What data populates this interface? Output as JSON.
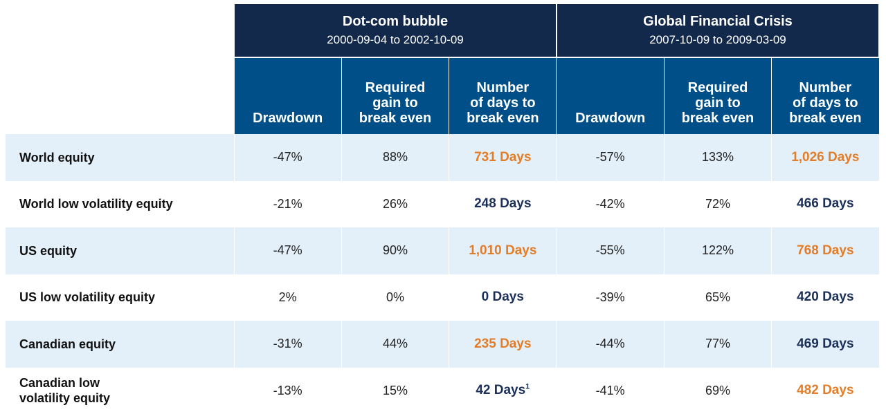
{
  "chart_data": {
    "type": "table",
    "title": "",
    "groups": [
      {
        "name": "Dot-com bubble",
        "dates": "2000-09-04 to 2002-10-09"
      },
      {
        "name": "Global Financial Crisis",
        "dates": "2007-10-09 to 2009-03-09"
      }
    ],
    "columns": [
      {
        "label": "Drawdown",
        "lines": [
          "Drawdown"
        ]
      },
      {
        "label": "Required gain to break even",
        "lines": [
          "Required",
          "gain to",
          "break even"
        ]
      },
      {
        "label": "Number of days to break even",
        "lines": [
          "Number",
          "of days to",
          "break even"
        ]
      }
    ],
    "rows": [
      {
        "label": "World equity",
        "label_lines": [
          "World equity"
        ],
        "cells": [
          {
            "drawdown": "-47%",
            "gain": "88%",
            "days": "731 Days",
            "days_color": "#e27d2a",
            "footnote": ""
          },
          {
            "drawdown": "-57%",
            "gain": "133%",
            "days": "1,026 Days",
            "days_color": "#e27d2a",
            "footnote": ""
          }
        ]
      },
      {
        "label": "World low volatility equity",
        "label_lines": [
          "World low volatility equity"
        ],
        "cells": [
          {
            "drawdown": "-21%",
            "gain": "26%",
            "days": "248 Days",
            "days_color": "#1b2f58",
            "footnote": ""
          },
          {
            "drawdown": "-42%",
            "gain": "72%",
            "days": "466 Days",
            "days_color": "#1b2f58",
            "footnote": ""
          }
        ]
      },
      {
        "label": "US equity",
        "label_lines": [
          "US equity"
        ],
        "cells": [
          {
            "drawdown": "-47%",
            "gain": "90%",
            "days": "1,010 Days",
            "days_color": "#e27d2a",
            "footnote": ""
          },
          {
            "drawdown": "-55%",
            "gain": "122%",
            "days": "768 Days",
            "days_color": "#e27d2a",
            "footnote": ""
          }
        ]
      },
      {
        "label": "US low volatility equity",
        "label_lines": [
          "US low volatility equity"
        ],
        "cells": [
          {
            "drawdown": "2%",
            "gain": "0%",
            "days": "0 Days",
            "days_color": "#1b2f58",
            "footnote": ""
          },
          {
            "drawdown": "-39%",
            "gain": "65%",
            "days": "420 Days",
            "days_color": "#1b2f58",
            "footnote": ""
          }
        ]
      },
      {
        "label": "Canadian equity",
        "label_lines": [
          "Canadian equity"
        ],
        "cells": [
          {
            "drawdown": "-31%",
            "gain": "44%",
            "days": "235 Days",
            "days_color": "#e27d2a",
            "footnote": ""
          },
          {
            "drawdown": "-44%",
            "gain": "77%",
            "days": "469 Days",
            "days_color": "#1b2f58",
            "footnote": ""
          }
        ]
      },
      {
        "label": "Canadian low volatility equity",
        "label_lines": [
          "Canadian low",
          "volatility equity"
        ],
        "cells": [
          {
            "drawdown": "-13%",
            "gain": "15%",
            "days": "42 Days",
            "days_color": "#1b2f58",
            "footnote": "1"
          },
          {
            "drawdown": "-41%",
            "gain": "69%",
            "days": "482 Days",
            "days_color": "#e27d2a",
            "footnote": ""
          }
        ]
      }
    ],
    "colors": {
      "group_header": "#13294b",
      "column_header": "#004f88",
      "row_shade": "#e3f0f9",
      "highlight_orange": "#e27d2a",
      "normal_navy": "#1b2f58"
    }
  }
}
